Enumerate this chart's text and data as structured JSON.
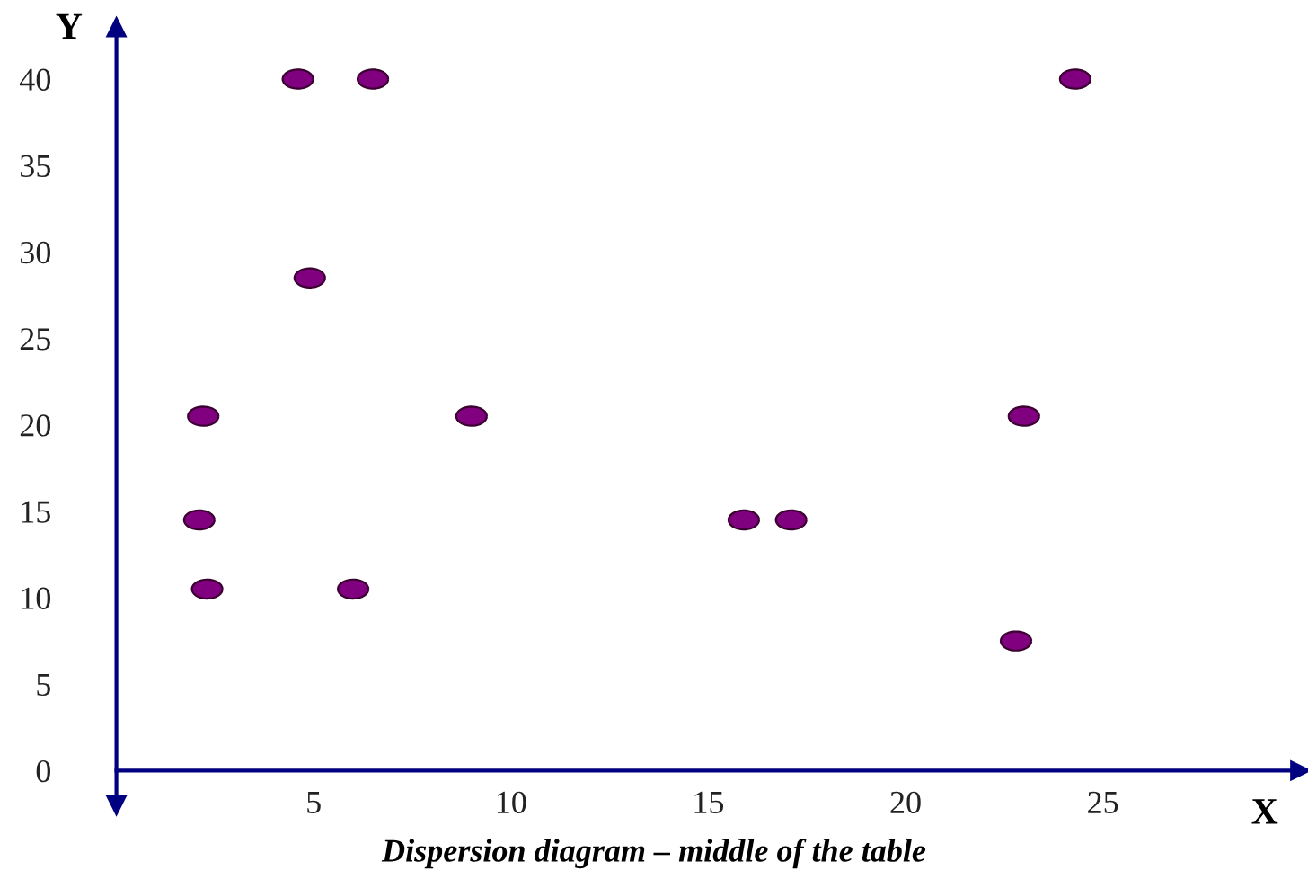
{
  "chart_data": {
    "type": "scatter",
    "title": "Dispersion diagram – middle of the table",
    "xlabel": "X",
    "ylabel": "Y",
    "x": [
      4.6,
      6.5,
      24.3,
      4.9,
      2.2,
      9.0,
      23.0,
      2.1,
      15.9,
      17.1,
      2.3,
      6.0,
      22.8
    ],
    "series": [
      {
        "color": "#800080",
        "values": [
          40,
          40,
          40,
          28.5,
          20.5,
          20.5,
          20.5,
          14.5,
          14.5,
          14.5,
          10.5,
          10.5,
          7.5
        ]
      }
    ],
    "xlim": [
      0,
      30
    ],
    "ylim": [
      -2,
      43
    ],
    "xticks": [
      5,
      10,
      15,
      20,
      25
    ],
    "yticks": [
      0,
      5,
      10,
      15,
      20,
      25,
      30,
      35,
      40
    ],
    "marker": "circle",
    "grid": false,
    "legend": false
  }
}
